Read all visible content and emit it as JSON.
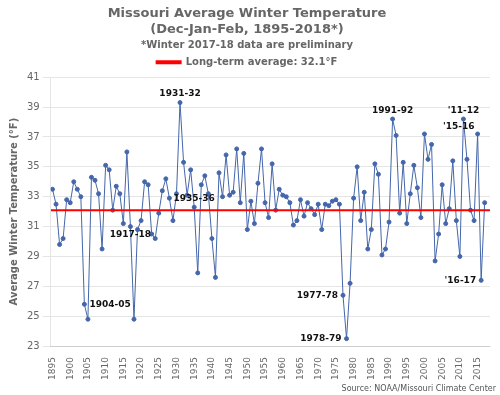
{
  "chart_data": {
    "type": "line",
    "title": "Missouri Average Winter Temperature",
    "subtitle": "(Dec-Jan-Feb, 1895-2018*)",
    "notes": [
      "*Winter 2017-18 data are preliminary"
    ],
    "source": "Source: NOAA/Missouri Climate Center",
    "ylabel": "Average Winter Temperature (°F)",
    "x": [
      1895,
      1896,
      1897,
      1898,
      1899,
      1900,
      1901,
      1902,
      1903,
      1904,
      1905,
      1906,
      1907,
      1908,
      1909,
      1910,
      1911,
      1912,
      1913,
      1914,
      1915,
      1916,
      1917,
      1918,
      1919,
      1920,
      1921,
      1922,
      1923,
      1924,
      1925,
      1926,
      1927,
      1928,
      1929,
      1930,
      1931,
      1932,
      1933,
      1934,
      1935,
      1936,
      1937,
      1938,
      1939,
      1940,
      1941,
      1942,
      1943,
      1944,
      1945,
      1946,
      1947,
      1948,
      1949,
      1950,
      1951,
      1952,
      1953,
      1954,
      1955,
      1956,
      1957,
      1958,
      1959,
      1960,
      1961,
      1962,
      1963,
      1964,
      1965,
      1966,
      1967,
      1968,
      1969,
      1970,
      1971,
      1972,
      1973,
      1974,
      1975,
      1976,
      1977,
      1978,
      1979,
      1980,
      1981,
      1982,
      1983,
      1984,
      1985,
      1986,
      1987,
      1988,
      1989,
      1990,
      1991,
      1992,
      1993,
      1994,
      1995,
      1996,
      1997,
      1998,
      1999,
      2000,
      2001,
      2002,
      2003,
      2004,
      2005,
      2006,
      2007,
      2008,
      2009,
      2010,
      2011,
      2012,
      2013,
      2014,
      2015,
      2016,
      2017
    ],
    "series": [
      {
        "color": "#4466aa",
        "marker": "circle",
        "values": [
          33.5,
          32.5,
          29.8,
          30.2,
          32.8,
          32.6,
          34.0,
          33.5,
          33.0,
          25.8,
          24.8,
          34.3,
          34.1,
          33.2,
          29.5,
          35.1,
          34.8,
          32.1,
          33.7,
          33.2,
          31.2,
          36.0,
          31.0,
          24.8,
          30.8,
          31.4,
          34.0,
          33.8,
          30.5,
          30.2,
          31.9,
          33.4,
          34.2,
          32.9,
          31.4,
          33.2,
          39.3,
          35.3,
          33.1,
          34.8,
          32.3,
          27.9,
          33.8,
          34.4,
          33.2,
          30.2,
          27.6,
          34.6,
          33.0,
          35.8,
          33.1,
          33.3,
          36.2,
          32.6,
          35.9,
          30.8,
          32.7,
          31.2,
          33.9,
          36.2,
          32.6,
          31.6,
          35.2,
          32.1,
          33.5,
          33.1,
          33.0,
          32.6,
          31.1,
          31.4,
          32.8,
          31.7,
          32.6,
          32.2,
          31.8,
          32.5,
          30.8,
          32.5,
          32.4,
          32.7,
          32.8,
          32.5,
          26.4,
          23.5,
          27.2,
          32.9,
          35.0,
          31.4,
          33.3,
          29.5,
          30.8,
          35.2,
          34.5,
          29.1,
          29.5,
          31.3,
          38.2,
          37.1,
          31.9,
          35.3,
          31.2,
          33.2,
          35.1,
          33.6,
          31.6,
          37.2,
          35.5,
          36.5,
          28.7,
          30.5,
          33.8,
          31.2,
          32.2,
          35.4,
          31.4,
          29.0,
          38.2,
          35.5,
          32.1,
          31.4,
          37.2,
          27.4,
          32.6
        ]
      }
    ],
    "hline": {
      "name": "Long-term average: 32.1°F",
      "value": 32.1,
      "color": "#ff0000"
    },
    "annotations": [
      {
        "x": 1904,
        "text": "1904-05"
      },
      {
        "x": 1917,
        "text": "1917-18"
      },
      {
        "x": 1935,
        "text": "1935-36"
      },
      {
        "x": 1977,
        "text": "1977-78"
      },
      {
        "x": 1978,
        "text": "1978-79"
      },
      {
        "x": 1931,
        "text": "1931-32"
      },
      {
        "x": 1991,
        "text": "1991-92"
      },
      {
        "x": 2011,
        "text": "'11-12"
      },
      {
        "x": 2015,
        "text": "'15-16"
      },
      {
        "x": 2016,
        "text": "'16-17"
      }
    ],
    "xlim": [
      1894.5,
      2018.5
    ],
    "xticks": [
      1895,
      1900,
      1905,
      1910,
      1915,
      1920,
      1925,
      1930,
      1935,
      1940,
      1945,
      1950,
      1955,
      1960,
      1965,
      1970,
      1975,
      1980,
      1985,
      1990,
      1995,
      2000,
      2005,
      2010,
      2015
    ],
    "ylim": [
      23,
      41
    ],
    "yticks": [
      23,
      25,
      27,
      29,
      31,
      33,
      35,
      37,
      39,
      41
    ],
    "grid": "y",
    "legend": "top"
  }
}
